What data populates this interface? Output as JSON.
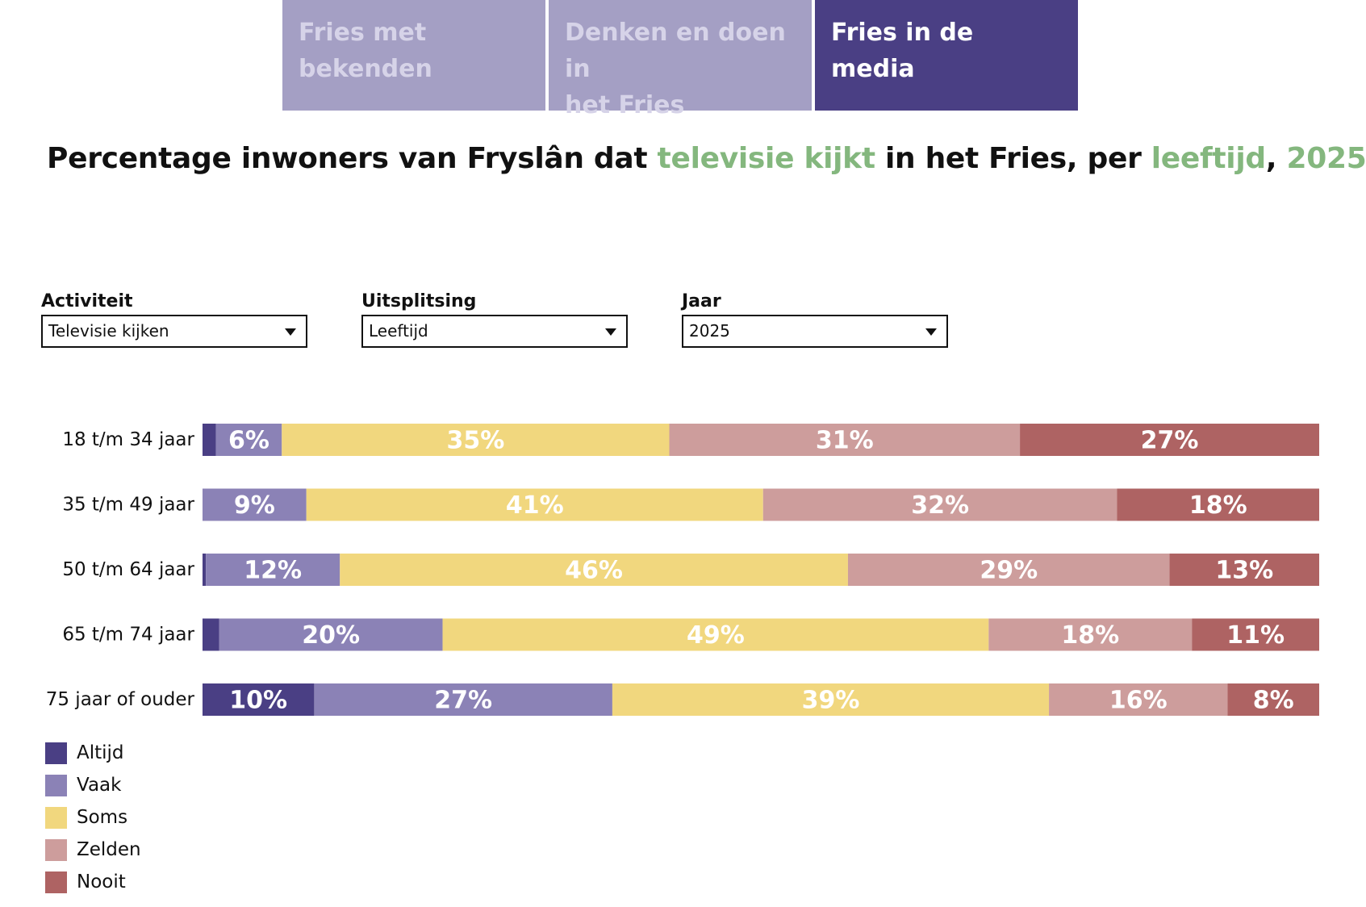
{
  "tabs": [
    {
      "label_line1": "Fries met",
      "label_line2": "bekenden",
      "active": false
    },
    {
      "label_line1": "Denken en doen in",
      "label_line2": "het Fries",
      "active": false
    },
    {
      "label_line1": "Fries in de media",
      "label_line2": "",
      "active": true
    }
  ],
  "title": {
    "part1": "Percentage inwoners van Fryslân dat ",
    "hl1": "televisie kijkt",
    "part2": " in het Fries, per ",
    "hl2": "leeftijd",
    "part3": ", ",
    "hl3": "2025"
  },
  "filters": {
    "activiteit": {
      "label": "Activiteit",
      "value": "Televisie kijken"
    },
    "uitsplitsing": {
      "label": "Uitsplitsing",
      "value": "Leeftijd"
    },
    "jaar": {
      "label": "Jaar",
      "value": "2025"
    }
  },
  "chart_data": {
    "type": "bar",
    "orientation": "horizontal",
    "stacked": "100%",
    "categories": [
      "18 t/m 34 jaar",
      "35 t/m 49 jaar",
      "50 t/m 64 jaar",
      "65 t/m 74 jaar",
      "75 jaar of ouder"
    ],
    "series": [
      {
        "name": "Altijd",
        "color": "#4a3f84",
        "values": [
          1.2,
          0,
          0.3,
          1.5,
          10
        ],
        "labels": [
          "",
          "",
          "",
          "",
          "10%"
        ]
      },
      {
        "name": "Vaak",
        "color": "#8b82b6",
        "values": [
          5.9,
          9.3,
          12,
          20,
          26.7
        ],
        "labels": [
          "6%",
          "9%",
          "12%",
          "20%",
          "27%"
        ]
      },
      {
        "name": "Soms",
        "color": "#f1d77e",
        "values": [
          34.7,
          40.9,
          45.5,
          48.9,
          39.1
        ],
        "labels": [
          "35%",
          "41%",
          "46%",
          "49%",
          "39%"
        ]
      },
      {
        "name": "Zelden",
        "color": "#cd9d9c",
        "values": [
          31.4,
          31.7,
          28.8,
          18.2,
          16
        ],
        "labels": [
          "31%",
          "32%",
          "29%",
          "18%",
          "16%"
        ]
      },
      {
        "name": "Nooit",
        "color": "#ae6363",
        "values": [
          26.8,
          18.1,
          13.4,
          11.4,
          8.2
        ],
        "labels": [
          "27%",
          "18%",
          "13%",
          "11%",
          "8%"
        ]
      }
    ],
    "xlim": [
      0,
      100
    ],
    "legend_position": "bottom-left"
  }
}
